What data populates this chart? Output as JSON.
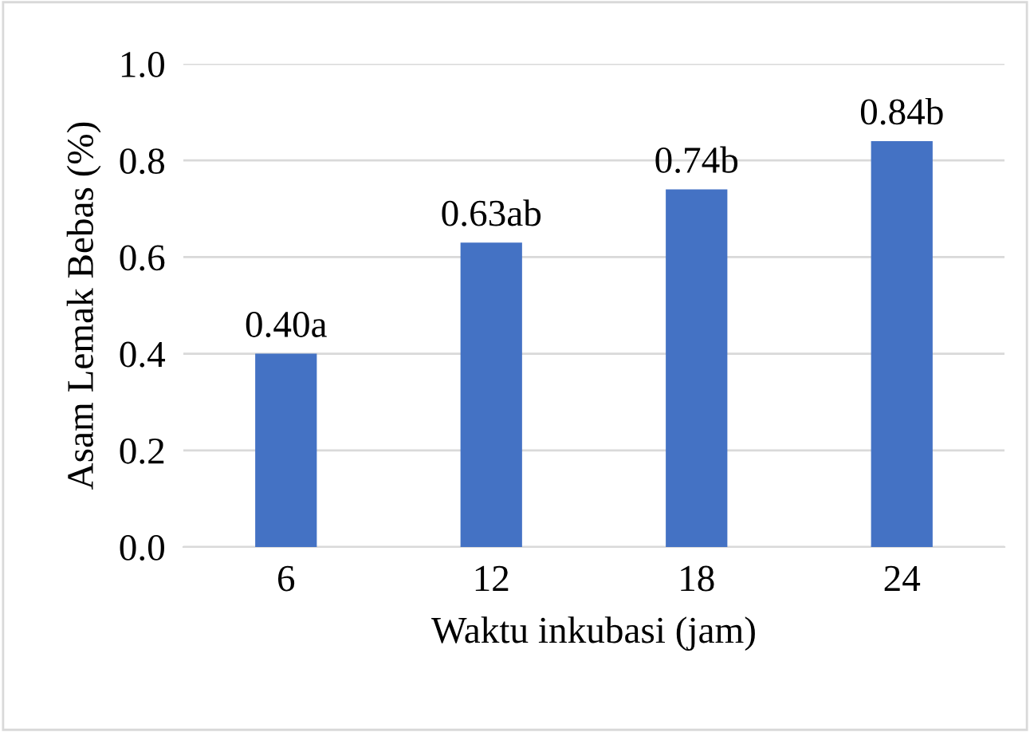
{
  "chart_data": {
    "type": "bar",
    "xlabel": "Waktu inkubasi (jam)",
    "ylabel": "Asam Lemak Bebas (%)",
    "categories": [
      "6",
      "12",
      "18",
      "24"
    ],
    "values": [
      0.4,
      0.63,
      0.74,
      0.84
    ],
    "value_labels": [
      "0.40a",
      "0.63ab",
      "0.74b",
      "0.84b"
    ],
    "color": "#4472c4",
    "ylim": [
      0,
      1.0
    ],
    "yticks": [
      {
        "value": 0,
        "label": "0.0"
      },
      {
        "value": 0.2,
        "label": "0.2"
      },
      {
        "value": 0.4,
        "label": "0.4"
      },
      {
        "value": 0.6,
        "label": "0.6"
      },
      {
        "value": 0.8,
        "label": "0.8"
      },
      {
        "value": 1.0,
        "label": "1.0"
      }
    ],
    "grid": "y"
  }
}
